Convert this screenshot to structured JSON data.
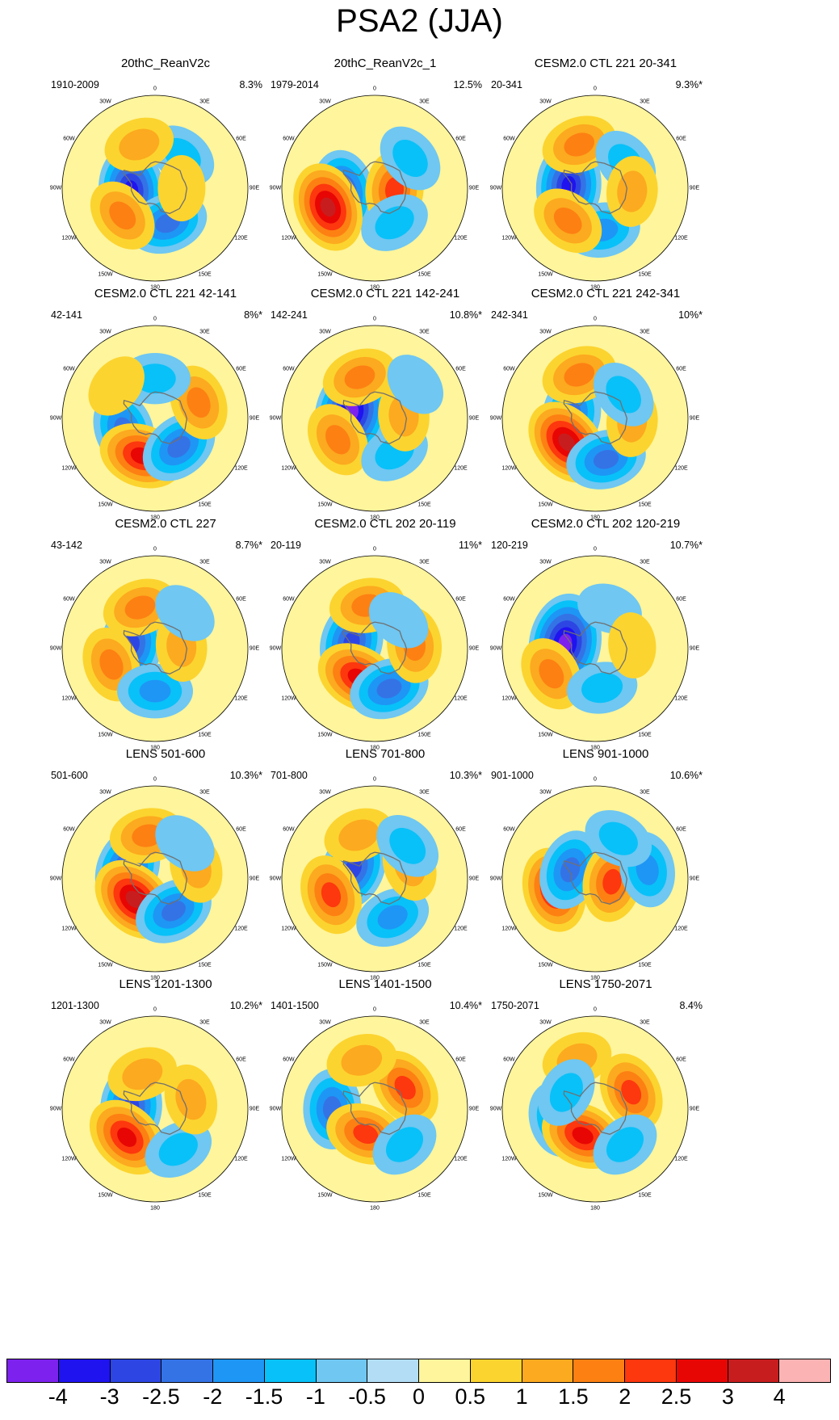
{
  "title": "PSA2 (JJA)",
  "chart_data": {
    "type": "heatmap",
    "description": "Polar stereographic regression maps of the PSA2 mode (JJA), 15 panels in 5 rows x 3 columns, shared discrete colorbar",
    "colorbar": {
      "ticks": [
        "-4",
        "-3",
        "-2.5",
        "-2",
        "-1.5",
        "-1",
        "-0.5",
        "0",
        "0.5",
        "1",
        "1.5",
        "2",
        "2.5",
        "3",
        "4"
      ],
      "colors": [
        "#7d22ee",
        "#1f13f0",
        "#2d46e3",
        "#3473e6",
        "#1e96f5",
        "#08c1f8",
        "#6fc7f2",
        "#b2ddf4",
        "#fef59c",
        "#fcd42f",
        "#fcaa1f",
        "#fd8013",
        "#fd370e",
        "#e70604",
        "#c81d1f",
        "#fbb3b3"
      ]
    },
    "longitude_labels": [
      "0",
      "30E",
      "60E",
      "90E",
      "120E",
      "150E",
      "180",
      "150W",
      "120W",
      "90W",
      "60W",
      "30W"
    ],
    "panels": [
      {
        "title": "20thC_ReanV2c",
        "period": "1910-2009",
        "variance": "8.3%",
        "anomalies": [
          {
            "lon": 265,
            "lat": 72,
            "value": -3
          },
          {
            "lon": 160,
            "lat": 62,
            "value": -2
          },
          {
            "lon": 40,
            "lat": 58,
            "value": -1
          },
          {
            "lon": 230,
            "lat": 58,
            "value": 1.5
          },
          {
            "lon": 340,
            "lat": 55,
            "value": 1
          },
          {
            "lon": 90,
            "lat": 70,
            "value": 0.5
          }
        ]
      },
      {
        "title": "20thC_ReanV2c_1",
        "period": "1979-2014",
        "variance": "12.5%",
        "anomalies": [
          {
            "lon": 262,
            "lat": 66,
            "value": -2.5
          },
          {
            "lon": 248,
            "lat": 52,
            "value": 3
          },
          {
            "lon": 95,
            "lat": 75,
            "value": 2
          },
          {
            "lon": 50,
            "lat": 55,
            "value": -1
          },
          {
            "lon": 150,
            "lat": 60,
            "value": -1
          }
        ]
      },
      {
        "title": "CESM2.0 CTL 221 20-341",
        "period": "20-341",
        "variance": "9.3%*",
        "anomalies": [
          {
            "lon": 275,
            "lat": 70,
            "value": -3
          },
          {
            "lon": 170,
            "lat": 58,
            "value": -1.5
          },
          {
            "lon": 340,
            "lat": 55,
            "value": 1.5
          },
          {
            "lon": 220,
            "lat": 58,
            "value": 1.5
          },
          {
            "lon": 50,
            "lat": 60,
            "value": -1
          },
          {
            "lon": 95,
            "lat": 62,
            "value": 1
          }
        ]
      },
      {
        "title": "CESM2.0 CTL 221 42-141",
        "period": "42-141",
        "variance": "8%*",
        "anomalies": [
          {
            "lon": 250,
            "lat": 65,
            "value": -2
          },
          {
            "lon": 200,
            "lat": 60,
            "value": 2.5
          },
          {
            "lon": 140,
            "lat": 62,
            "value": -2
          },
          {
            "lon": 70,
            "lat": 55,
            "value": 1.5
          },
          {
            "lon": 0,
            "lat": 60,
            "value": -1
          },
          {
            "lon": 310,
            "lat": 52,
            "value": 0.5
          }
        ]
      },
      {
        "title": "CESM2.0 CTL 221 142-241",
        "period": "142-241",
        "variance": "10.8%*",
        "anomalies": [
          {
            "lon": 285,
            "lat": 72,
            "value": -4
          },
          {
            "lon": 240,
            "lat": 58,
            "value": 1.5
          },
          {
            "lon": 340,
            "lat": 57,
            "value": 1.5
          },
          {
            "lon": 150,
            "lat": 60,
            "value": -1
          },
          {
            "lon": 85,
            "lat": 68,
            "value": 1
          },
          {
            "lon": 50,
            "lat": 50,
            "value": -0.5
          }
        ]
      },
      {
        "title": "CESM2.0 CTL 221 242-341",
        "period": "242-341",
        "variance": "10%*",
        "anomalies": [
          {
            "lon": 280,
            "lat": 72,
            "value": -2
          },
          {
            "lon": 230,
            "lat": 62,
            "value": 3
          },
          {
            "lon": 165,
            "lat": 58,
            "value": -2
          },
          {
            "lon": 340,
            "lat": 55,
            "value": 1.5
          },
          {
            "lon": 95,
            "lat": 62,
            "value": 1
          },
          {
            "lon": 50,
            "lat": 62,
            "value": -1
          }
        ]
      },
      {
        "title": "CESM2.0 CTL 227",
        "period": "43-142",
        "variance": "8.7%*",
        "anomalies": [
          {
            "lon": 280,
            "lat": 72,
            "value": -2.5
          },
          {
            "lon": 250,
            "lat": 55,
            "value": 1.5
          },
          {
            "lon": 340,
            "lat": 57,
            "value": 1.5
          },
          {
            "lon": 180,
            "lat": 58,
            "value": -1.5
          },
          {
            "lon": 85,
            "lat": 70,
            "value": 1
          },
          {
            "lon": 40,
            "lat": 55,
            "value": -0.5
          }
        ]
      },
      {
        "title": "CESM2.0 CTL 202 20-119",
        "period": "20-119",
        "variance": "11%*",
        "anomalies": [
          {
            "lon": 285,
            "lat": 72,
            "value": -2.5
          },
          {
            "lon": 210,
            "lat": 65,
            "value": 2.5
          },
          {
            "lon": 160,
            "lat": 58,
            "value": -2
          },
          {
            "lon": 350,
            "lat": 57,
            "value": 1.5
          },
          {
            "lon": 85,
            "lat": 60,
            "value": 1.5
          },
          {
            "lon": 40,
            "lat": 62,
            "value": -0.5
          }
        ]
      },
      {
        "title": "CESM2.0 CTL 202 120-219",
        "period": "120-219",
        "variance": "10.7%*",
        "anomalies": [
          {
            "lon": 280,
            "lat": 67,
            "value": -4
          },
          {
            "lon": 240,
            "lat": 52,
            "value": 1.5
          },
          {
            "lon": 170,
            "lat": 60,
            "value": -1
          },
          {
            "lon": 20,
            "lat": 58,
            "value": -0.5
          },
          {
            "lon": 85,
            "lat": 62,
            "value": 0.5
          }
        ]
      },
      {
        "title": "LENS 501-600",
        "period": "501-600",
        "variance": "10.3%*",
        "anomalies": [
          {
            "lon": 290,
            "lat": 68,
            "value": -2.5
          },
          {
            "lon": 225,
            "lat": 68,
            "value": 3
          },
          {
            "lon": 150,
            "lat": 62,
            "value": -2
          },
          {
            "lon": 350,
            "lat": 57,
            "value": 1.5
          },
          {
            "lon": 75,
            "lat": 58,
            "value": 1
          },
          {
            "lon": 40,
            "lat": 55,
            "value": -0.5
          }
        ]
      },
      {
        "title": "LENS 701-800",
        "period": "701-800",
        "variance": "10.3%*",
        "anomalies": [
          {
            "lon": 295,
            "lat": 72,
            "value": -2.5
          },
          {
            "lon": 250,
            "lat": 55,
            "value": 2
          },
          {
            "lon": 340,
            "lat": 55,
            "value": 1
          },
          {
            "lon": 155,
            "lat": 58,
            "value": -1.5
          },
          {
            "lon": 70,
            "lat": 62,
            "value": 1
          },
          {
            "lon": 45,
            "lat": 55,
            "value": -1
          }
        ]
      },
      {
        "title": "LENS 901-1000",
        "period": "901-1000",
        "variance": "10.6%*",
        "anomalies": [
          {
            "lon": 255,
            "lat": 58,
            "value": 2.5
          },
          {
            "lon": 290,
            "lat": 70,
            "value": -2
          },
          {
            "lon": 100,
            "lat": 77,
            "value": 2
          },
          {
            "lon": 80,
            "lat": 50,
            "value": -1.5
          },
          {
            "lon": 30,
            "lat": 55,
            "value": -1
          }
        ]
      },
      {
        "title": "LENS 1201-1300",
        "period": "1201-1300",
        "variance": "10.2%*",
        "anomalies": [
          {
            "lon": 275,
            "lat": 72,
            "value": -2.5
          },
          {
            "lon": 225,
            "lat": 60,
            "value": 2.5
          },
          {
            "lon": 340,
            "lat": 62,
            "value": 1
          },
          {
            "lon": 150,
            "lat": 55,
            "value": -1
          },
          {
            "lon": 75,
            "lat": 62,
            "value": 1
          }
        ]
      },
      {
        "title": "LENS 1401-1500",
        "period": "1401-1500",
        "variance": "10.4%*",
        "anomalies": [
          {
            "lon": 270,
            "lat": 58,
            "value": -2
          },
          {
            "lon": 200,
            "lat": 70,
            "value": 2
          },
          {
            "lon": 55,
            "lat": 62,
            "value": 2
          },
          {
            "lon": 345,
            "lat": 52,
            "value": 1
          },
          {
            "lon": 140,
            "lat": 55,
            "value": -1
          }
        ]
      },
      {
        "title": "LENS 1750-2071",
        "period": "1750-2071",
        "variance": "8.4%",
        "anomalies": [
          {
            "lon": 255,
            "lat": 60,
            "value": -1.5
          },
          {
            "lon": 205,
            "lat": 68,
            "value": 2.5
          },
          {
            "lon": 65,
            "lat": 60,
            "value": 2
          },
          {
            "lon": 340,
            "lat": 50,
            "value": 1
          },
          {
            "lon": 140,
            "lat": 55,
            "value": -1
          },
          {
            "lon": 300,
            "lat": 65,
            "value": -1
          }
        ]
      }
    ]
  }
}
